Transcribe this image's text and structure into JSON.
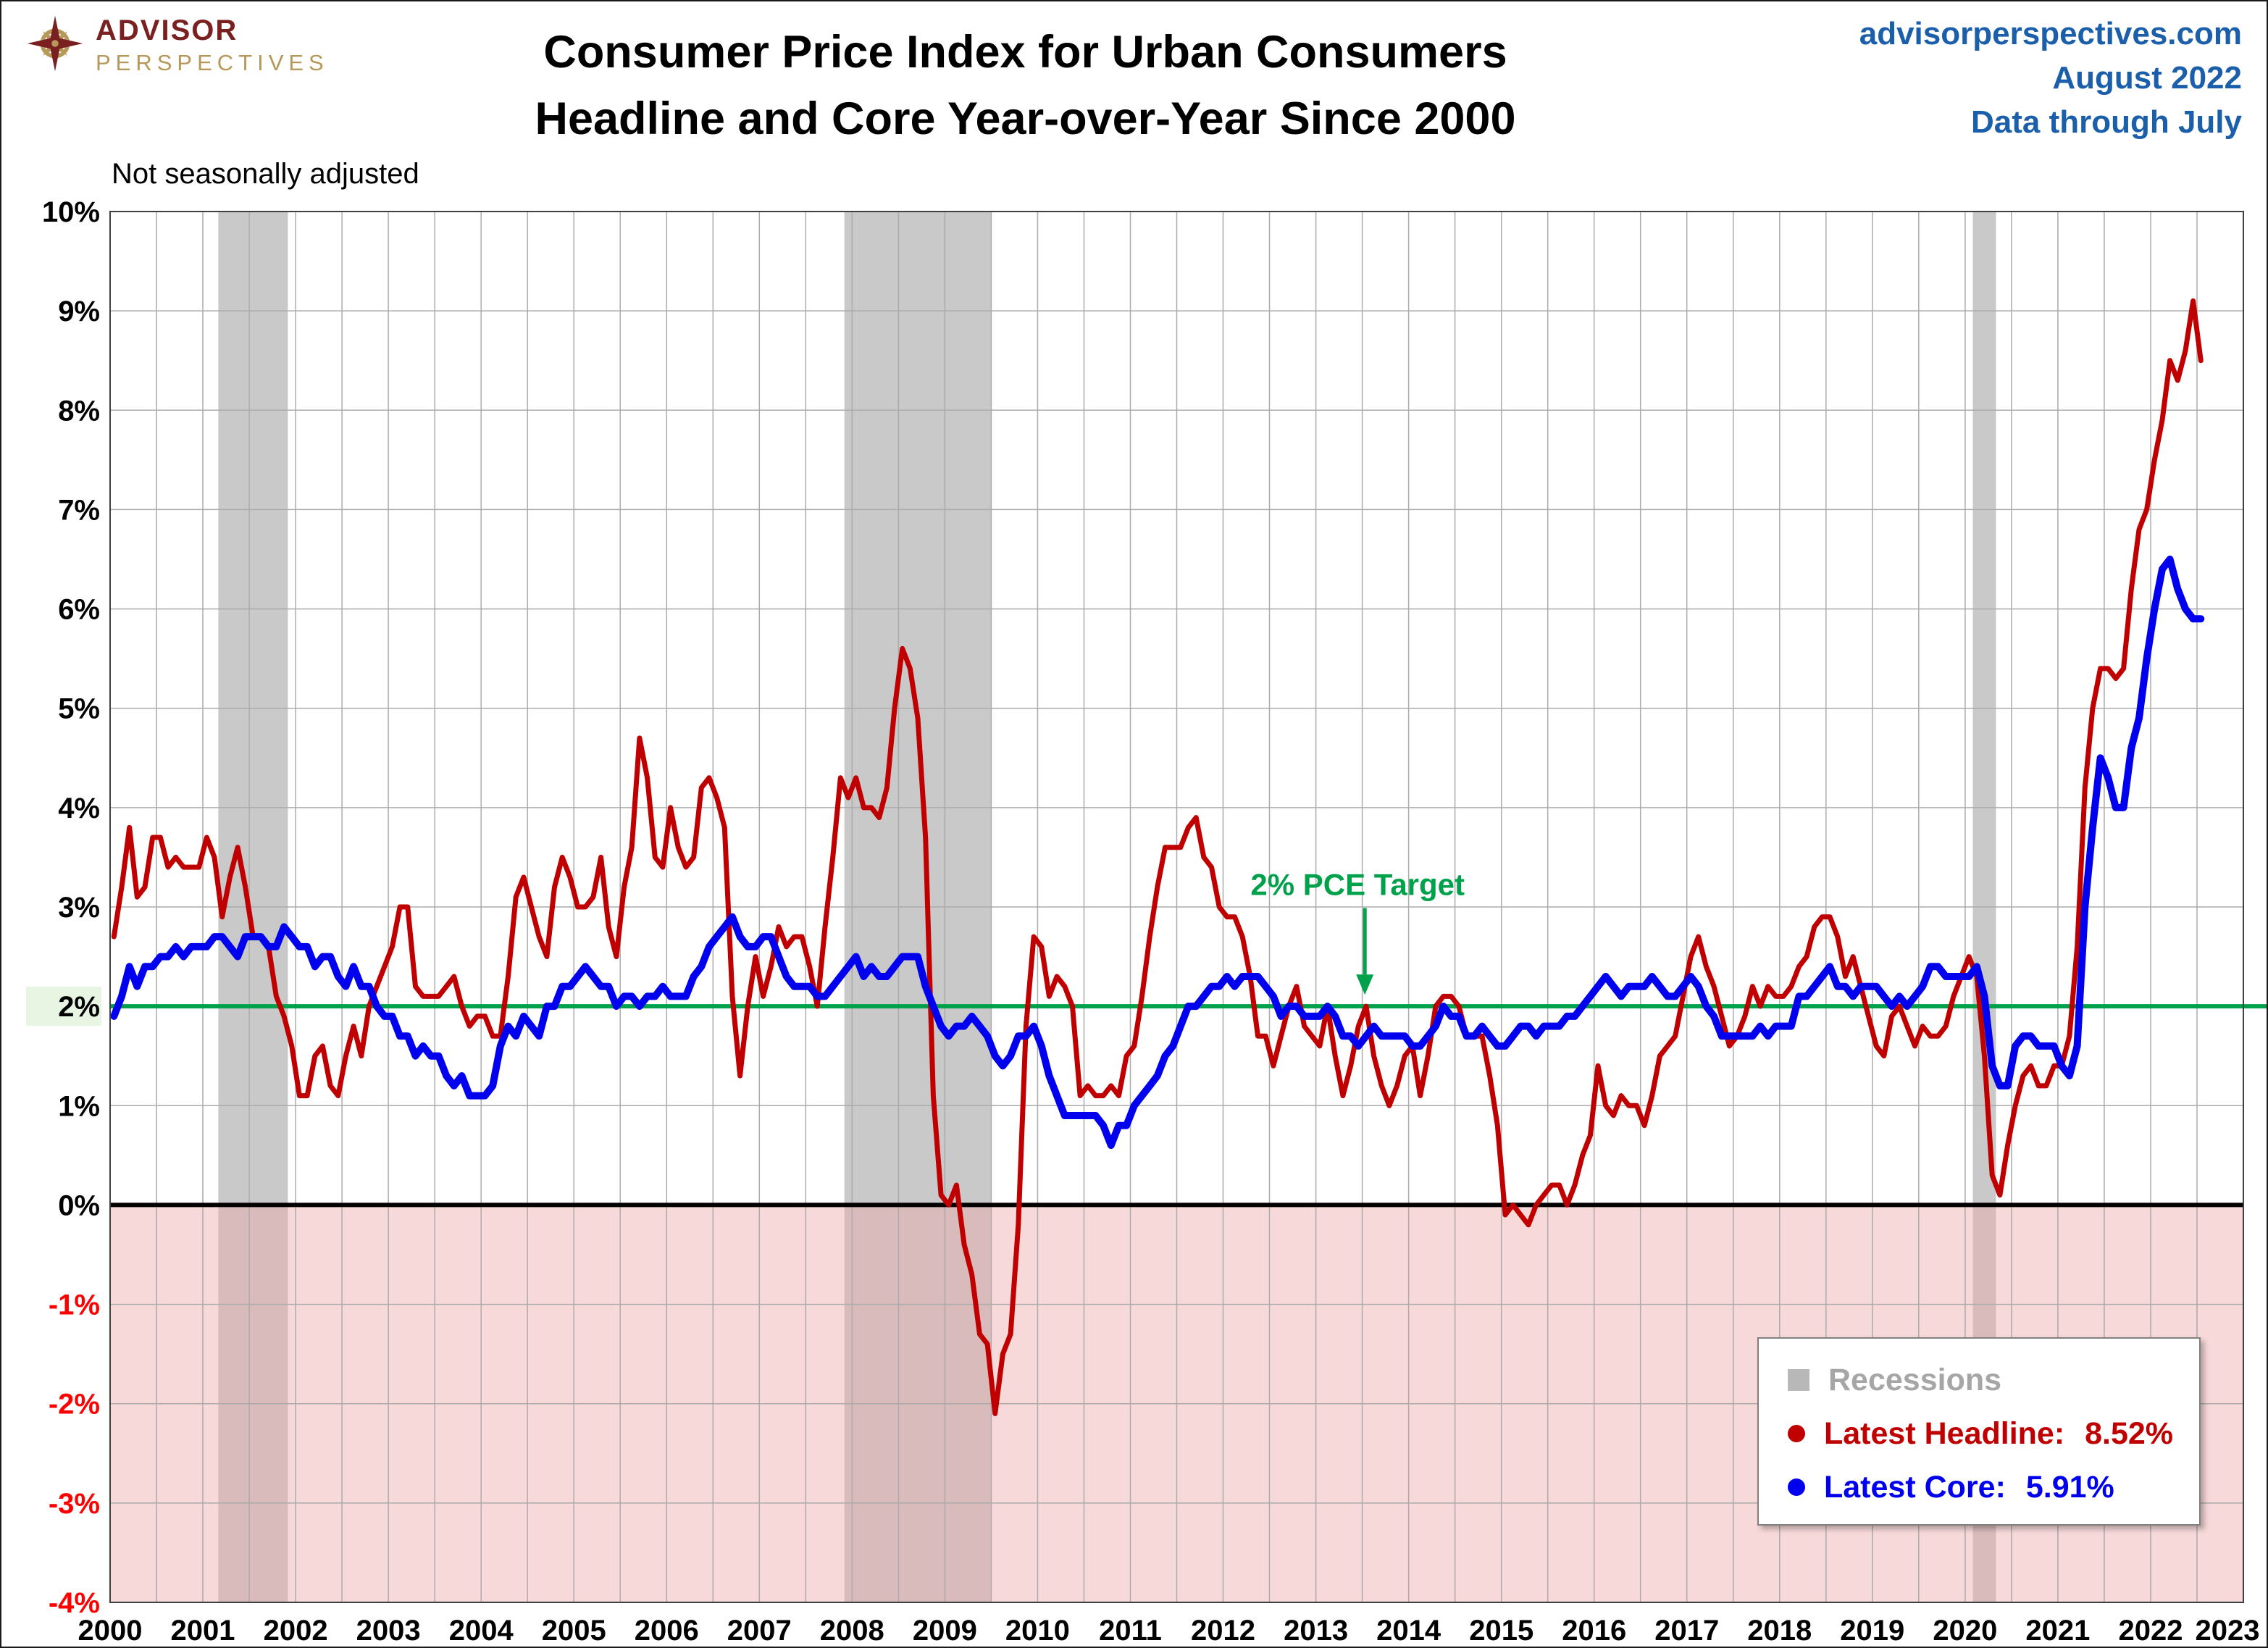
{
  "header": {
    "logo_line1": "ADVISOR",
    "logo_line2": "PERSPECTIVES",
    "title_line1": "Consumer Price Index for Urban Consumers",
    "title_line2": "Headline and Core Year-over-Year Since 2000",
    "site": "advisorperspectives.com",
    "date": "August 2022",
    "through": "Data through July"
  },
  "subtitle": "Not seasonally adjusted",
  "legend": {
    "recessions_label": "Recessions",
    "headline_label": "Latest Headline: ",
    "headline_value": "8.52%",
    "core_label": "Latest Core: ",
    "core_value": "5.91%"
  },
  "colors": {
    "headline": "#C00000",
    "core": "#0000EE",
    "target": "#00A14B",
    "recession": "#C9C9C9",
    "legend_swatch": "#B8B8B8",
    "legend_gray": "#A6A6A6",
    "negative_fill_rgba": "rgba(240,170,170,0.45)",
    "grid": "#ABABAB",
    "neg_tick": "#FF0000",
    "zero_line": "#000000",
    "plot_border": "#404040",
    "header_blue": "#1B5FAA",
    "logo_maroon": "#7B2021",
    "logo_gold": "#B5985A",
    "target_label_highlight": "#E9F5E3"
  },
  "chart_data": {
    "type": "line",
    "title": "Consumer Price Index for Urban Consumers — Headline and Core Year-over-Year Since 2000",
    "subtitle": "Not seasonally adjusted",
    "x_unit": "monthly",
    "x_start": "2000-01",
    "x_end": "2022-07",
    "x_start_year": 2000,
    "x_end_year": 2023,
    "x_grid_step": 0.5,
    "ylim": [
      -4,
      10
    ],
    "y_tick_step": 1,
    "grid": true,
    "legend_position": "bottom-right",
    "zero_line": 0,
    "target_line": 2,
    "annotation": {
      "label": "2% PCE Target",
      "x": 2013.45,
      "text_y": 3.12
    },
    "recessions": [
      [
        2001.167,
        2001.917
      ],
      [
        2007.917,
        2009.5
      ],
      [
        2020.083,
        2020.333
      ]
    ],
    "y_tick_labels": [
      "10%",
      "9%",
      "8%",
      "7%",
      "6%",
      "5%",
      "4%",
      "3%",
      "2%",
      "1%",
      "0%",
      "-1%",
      "-2%",
      "-3%",
      "-4%"
    ],
    "x_tick_labels": [
      "2000",
      "2001",
      "2002",
      "2003",
      "2004",
      "2005",
      "2006",
      "2007",
      "2008",
      "2009",
      "2010",
      "2011",
      "2012",
      "2013",
      "2014",
      "2015",
      "2016",
      "2017",
      "2018",
      "2019",
      "2020",
      "2021",
      "2022",
      "2023"
    ],
    "series": [
      {
        "name": "Headline CPI YoY %",
        "color_key": "headline",
        "latest": 8.52,
        "start": "2000-01",
        "values": [
          2.7,
          3.2,
          3.8,
          3.1,
          3.2,
          3.7,
          3.7,
          3.4,
          3.5,
          3.4,
          3.4,
          3.4,
          3.7,
          3.5,
          2.9,
          3.3,
          3.6,
          3.2,
          2.7,
          2.7,
          2.6,
          2.1,
          1.9,
          1.6,
          1.1,
          1.1,
          1.5,
          1.6,
          1.2,
          1.1,
          1.5,
          1.8,
          1.5,
          2.0,
          2.2,
          2.4,
          2.6,
          3.0,
          3.0,
          2.2,
          2.1,
          2.1,
          2.1,
          2.2,
          2.3,
          2.0,
          1.8,
          1.9,
          1.9,
          1.7,
          1.7,
          2.3,
          3.1,
          3.3,
          3.0,
          2.7,
          2.5,
          3.2,
          3.5,
          3.3,
          3.0,
          3.0,
          3.1,
          3.5,
          2.8,
          2.5,
          3.2,
          3.6,
          4.7,
          4.3,
          3.5,
          3.4,
          4.0,
          3.6,
          3.4,
          3.5,
          4.2,
          4.3,
          4.1,
          3.8,
          2.1,
          1.3,
          2.0,
          2.5,
          2.1,
          2.4,
          2.8,
          2.6,
          2.7,
          2.7,
          2.4,
          2.0,
          2.8,
          3.5,
          4.3,
          4.1,
          4.3,
          4.0,
          4.0,
          3.9,
          4.2,
          5.0,
          5.6,
          5.4,
          4.9,
          3.7,
          1.1,
          0.1,
          0.0,
          0.2,
          -0.4,
          -0.7,
          -1.3,
          -1.4,
          -2.1,
          -1.5,
          -1.3,
          -0.2,
          1.8,
          2.7,
          2.6,
          2.1,
          2.3,
          2.2,
          2.0,
          1.1,
          1.2,
          1.1,
          1.1,
          1.2,
          1.1,
          1.5,
          1.6,
          2.1,
          2.7,
          3.2,
          3.6,
          3.6,
          3.6,
          3.8,
          3.9,
          3.5,
          3.4,
          3.0,
          2.9,
          2.9,
          2.7,
          2.3,
          1.7,
          1.7,
          1.4,
          1.7,
          2.0,
          2.2,
          1.8,
          1.7,
          1.6,
          2.0,
          1.5,
          1.1,
          1.4,
          1.8,
          2.0,
          1.5,
          1.2,
          1.0,
          1.2,
          1.5,
          1.6,
          1.1,
          1.5,
          2.0,
          2.1,
          2.1,
          2.0,
          1.7,
          1.7,
          1.7,
          1.3,
          0.8,
          -0.1,
          0.0,
          -0.1,
          -0.2,
          0.0,
          0.1,
          0.2,
          0.2,
          0.0,
          0.2,
          0.5,
          0.7,
          1.4,
          1.0,
          0.9,
          1.1,
          1.0,
          1.0,
          0.8,
          1.1,
          1.5,
          1.6,
          1.7,
          2.1,
          2.5,
          2.7,
          2.4,
          2.2,
          1.9,
          1.6,
          1.7,
          1.9,
          2.2,
          2.0,
          2.2,
          2.1,
          2.1,
          2.2,
          2.4,
          2.5,
          2.8,
          2.9,
          2.9,
          2.7,
          2.3,
          2.5,
          2.2,
          1.9,
          1.6,
          1.5,
          1.9,
          2.0,
          1.8,
          1.6,
          1.8,
          1.7,
          1.7,
          1.8,
          2.1,
          2.3,
          2.5,
          2.3,
          1.5,
          0.3,
          0.1,
          0.6,
          1.0,
          1.3,
          1.4,
          1.2,
          1.2,
          1.4,
          1.4,
          1.7,
          2.6,
          4.2,
          5.0,
          5.4,
          5.4,
          5.3,
          5.4,
          6.2,
          6.8,
          7.0,
          7.5,
          7.9,
          8.5,
          8.3,
          8.6,
          9.1,
          8.5
        ]
      },
      {
        "name": "Core CPI YoY %",
        "color_key": "core",
        "latest": 5.91,
        "start": "2000-01",
        "values": [
          1.9,
          2.1,
          2.4,
          2.2,
          2.4,
          2.4,
          2.5,
          2.5,
          2.6,
          2.5,
          2.6,
          2.6,
          2.6,
          2.7,
          2.7,
          2.6,
          2.5,
          2.7,
          2.7,
          2.7,
          2.6,
          2.6,
          2.8,
          2.7,
          2.6,
          2.6,
          2.4,
          2.5,
          2.5,
          2.3,
          2.2,
          2.4,
          2.2,
          2.2,
          2.0,
          1.9,
          1.9,
          1.7,
          1.7,
          1.5,
          1.6,
          1.5,
          1.5,
          1.3,
          1.2,
          1.3,
          1.1,
          1.1,
          1.1,
          1.2,
          1.6,
          1.8,
          1.7,
          1.9,
          1.8,
          1.7,
          2.0,
          2.0,
          2.2,
          2.2,
          2.3,
          2.4,
          2.3,
          2.2,
          2.2,
          2.0,
          2.1,
          2.1,
          2.0,
          2.1,
          2.1,
          2.2,
          2.1,
          2.1,
          2.1,
          2.3,
          2.4,
          2.6,
          2.7,
          2.8,
          2.9,
          2.7,
          2.6,
          2.6,
          2.7,
          2.7,
          2.5,
          2.3,
          2.2,
          2.2,
          2.2,
          2.1,
          2.1,
          2.2,
          2.3,
          2.4,
          2.5,
          2.3,
          2.4,
          2.3,
          2.3,
          2.4,
          2.5,
          2.5,
          2.5,
          2.2,
          2.0,
          1.8,
          1.7,
          1.8,
          1.8,
          1.9,
          1.8,
          1.7,
          1.5,
          1.4,
          1.5,
          1.7,
          1.7,
          1.8,
          1.6,
          1.3,
          1.1,
          0.9,
          0.9,
          0.9,
          0.9,
          0.9,
          0.8,
          0.6,
          0.8,
          0.8,
          1.0,
          1.1,
          1.2,
          1.3,
          1.5,
          1.6,
          1.8,
          2.0,
          2.0,
          2.1,
          2.2,
          2.2,
          2.3,
          2.2,
          2.3,
          2.3,
          2.3,
          2.2,
          2.1,
          1.9,
          2.0,
          2.0,
          1.9,
          1.9,
          1.9,
          2.0,
          1.9,
          1.7,
          1.7,
          1.6,
          1.7,
          1.8,
          1.7,
          1.7,
          1.7,
          1.7,
          1.6,
          1.6,
          1.7,
          1.8,
          2.0,
          1.9,
          1.9,
          1.7,
          1.7,
          1.8,
          1.7,
          1.6,
          1.6,
          1.7,
          1.8,
          1.8,
          1.7,
          1.8,
          1.8,
          1.8,
          1.9,
          1.9,
          2.0,
          2.1,
          2.2,
          2.3,
          2.2,
          2.1,
          2.2,
          2.2,
          2.2,
          2.3,
          2.2,
          2.1,
          2.1,
          2.2,
          2.3,
          2.2,
          2.0,
          1.9,
          1.7,
          1.7,
          1.7,
          1.7,
          1.7,
          1.8,
          1.7,
          1.8,
          1.8,
          1.8,
          2.1,
          2.1,
          2.2,
          2.3,
          2.4,
          2.2,
          2.2,
          2.1,
          2.2,
          2.2,
          2.2,
          2.1,
          2.0,
          2.1,
          2.0,
          2.1,
          2.2,
          2.4,
          2.4,
          2.3,
          2.3,
          2.3,
          2.3,
          2.4,
          2.1,
          1.4,
          1.2,
          1.2,
          1.6,
          1.7,
          1.7,
          1.6,
          1.6,
          1.6,
          1.4,
          1.3,
          1.6,
          3.0,
          3.8,
          4.5,
          4.3,
          4.0,
          4.0,
          4.6,
          4.9,
          5.5,
          6.0,
          6.4,
          6.5,
          6.2,
          6.0,
          5.9,
          5.9
        ]
      }
    ]
  }
}
